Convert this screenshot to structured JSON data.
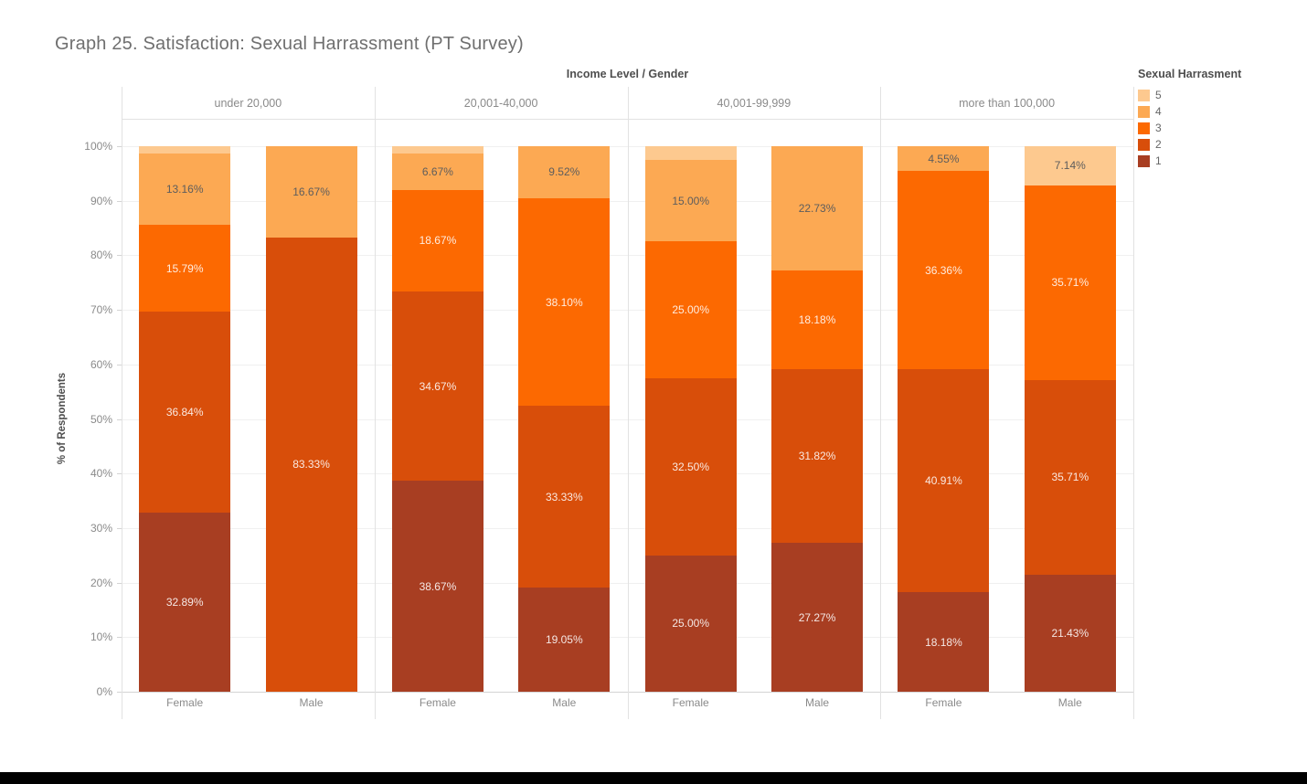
{
  "chart_data": {
    "type": "bar",
    "variant": "100pct-stacked-columns-small-multiples",
    "title": "Graph 25. Satisfaction: Sexual Harrassment (PT Survey)",
    "col_header": "Income Level / Gender",
    "ylabel": "% of Respondents",
    "ylim": [
      0,
      100
    ],
    "grid": true,
    "yticks": [
      "0%",
      "10%",
      "20%",
      "30%",
      "40%",
      "50%",
      "60%",
      "70%",
      "80%",
      "90%",
      "100%"
    ],
    "colors": {
      "1": "#A83E22",
      "2": "#D84E0A",
      "3": "#FC6901",
      "4": "#FCA953",
      "5": "#FDC98F"
    },
    "legend": {
      "title": "Sexual Harrasment",
      "position": "top-right",
      "entries": [
        {
          "label": "5",
          "color": "#FDC98F"
        },
        {
          "label": "4",
          "color": "#FCA953"
        },
        {
          "label": "3",
          "color": "#FC6901"
        },
        {
          "label": "2",
          "color": "#D84E0A"
        },
        {
          "label": "1",
          "color": "#A83E22"
        }
      ]
    },
    "panels": [
      {
        "label": "under 20,000",
        "bars": [
          {
            "gender": "Female",
            "segments": [
              {
                "level": "1",
                "pct": 32.89,
                "label": "32.89%"
              },
              {
                "level": "2",
                "pct": 36.84,
                "label": "36.84%"
              },
              {
                "level": "3",
                "pct": 15.79,
                "label": "15.79%"
              },
              {
                "level": "4",
                "pct": 13.16,
                "label": "13.16%"
              },
              {
                "level": "5",
                "pct": 1.32,
                "label": ""
              }
            ]
          },
          {
            "gender": "Male",
            "segments": [
              {
                "level": "2",
                "pct": 83.33,
                "label": "83.33%"
              },
              {
                "level": "4",
                "pct": 16.67,
                "label": "16.67%"
              }
            ]
          }
        ]
      },
      {
        "label": "20,001-40,000",
        "bars": [
          {
            "gender": "Female",
            "segments": [
              {
                "level": "1",
                "pct": 38.67,
                "label": "38.67%"
              },
              {
                "level": "2",
                "pct": 34.67,
                "label": "34.67%"
              },
              {
                "level": "3",
                "pct": 18.67,
                "label": "18.67%"
              },
              {
                "level": "4",
                "pct": 6.67,
                "label": "6.67%"
              },
              {
                "level": "5",
                "pct": 1.32,
                "label": ""
              }
            ]
          },
          {
            "gender": "Male",
            "segments": [
              {
                "level": "1",
                "pct": 19.05,
                "label": "19.05%"
              },
              {
                "level": "2",
                "pct": 33.33,
                "label": "33.33%"
              },
              {
                "level": "3",
                "pct": 38.1,
                "label": "38.10%"
              },
              {
                "level": "4",
                "pct": 9.52,
                "label": "9.52%"
              }
            ]
          }
        ]
      },
      {
        "label": "40,001-99,999",
        "bars": [
          {
            "gender": "Female",
            "segments": [
              {
                "level": "1",
                "pct": 25.0,
                "label": "25.00%"
              },
              {
                "level": "2",
                "pct": 32.5,
                "label": "32.50%"
              },
              {
                "level": "3",
                "pct": 25.0,
                "label": "25.00%"
              },
              {
                "level": "4",
                "pct": 15.0,
                "label": "15.00%"
              },
              {
                "level": "5",
                "pct": 2.5,
                "label": ""
              }
            ]
          },
          {
            "gender": "Male",
            "segments": [
              {
                "level": "1",
                "pct": 27.27,
                "label": "27.27%"
              },
              {
                "level": "2",
                "pct": 31.82,
                "label": "31.82%"
              },
              {
                "level": "3",
                "pct": 18.18,
                "label": "18.18%"
              },
              {
                "level": "4",
                "pct": 22.73,
                "label": "22.73%"
              }
            ]
          }
        ]
      },
      {
        "label": "more than 100,000",
        "bars": [
          {
            "gender": "Female",
            "segments": [
              {
                "level": "1",
                "pct": 18.18,
                "label": "18.18%"
              },
              {
                "level": "2",
                "pct": 40.91,
                "label": "40.91%"
              },
              {
                "level": "3",
                "pct": 36.36,
                "label": "36.36%"
              },
              {
                "level": "4",
                "pct": 4.55,
                "label": "4.55%"
              }
            ]
          },
          {
            "gender": "Male",
            "segments": [
              {
                "level": "1",
                "pct": 21.43,
                "label": "21.43%"
              },
              {
                "level": "2",
                "pct": 35.71,
                "label": "35.71%"
              },
              {
                "level": "3",
                "pct": 35.71,
                "label": "35.71%"
              },
              {
                "level": "5",
                "pct": 7.14,
                "label": "7.14%"
              }
            ]
          }
        ]
      }
    ]
  }
}
